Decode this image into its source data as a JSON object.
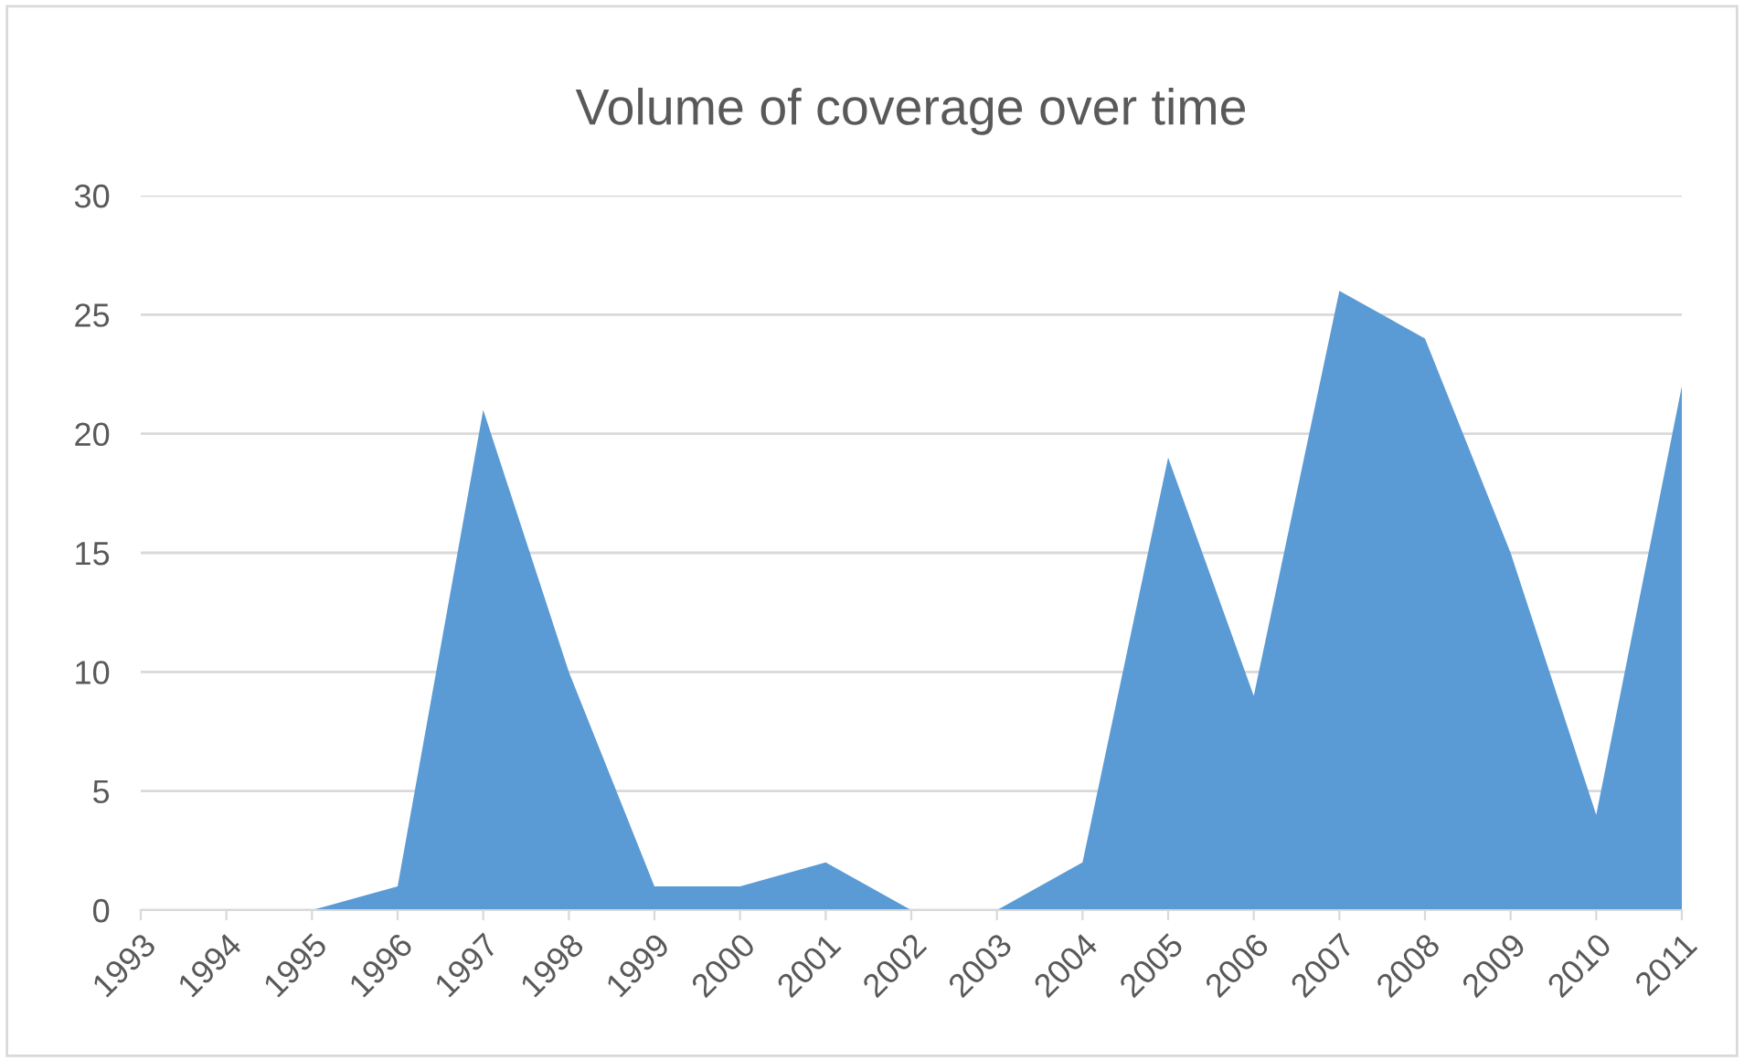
{
  "chart_data": {
    "type": "area",
    "title": "Volume of coverage over time",
    "categories": [
      "1993",
      "1994",
      "1995",
      "1996",
      "1997",
      "1998",
      "1999",
      "2000",
      "2001",
      "2002",
      "2003",
      "2004",
      "2005",
      "2006",
      "2007",
      "2008",
      "2009",
      "2010",
      "2011"
    ],
    "series": [
      {
        "color": "#5b9bd5",
        "values": [
          0,
          0,
          0,
          1,
          21,
          10,
          1,
          1,
          2,
          0,
          0,
          2,
          19,
          9,
          26,
          24,
          15,
          4,
          22
        ]
      }
    ],
    "ylim": [
      0,
      30
    ],
    "yticks": [
      0,
      5,
      10,
      15,
      20,
      25,
      30
    ],
    "grid": "y",
    "legend": false
  }
}
